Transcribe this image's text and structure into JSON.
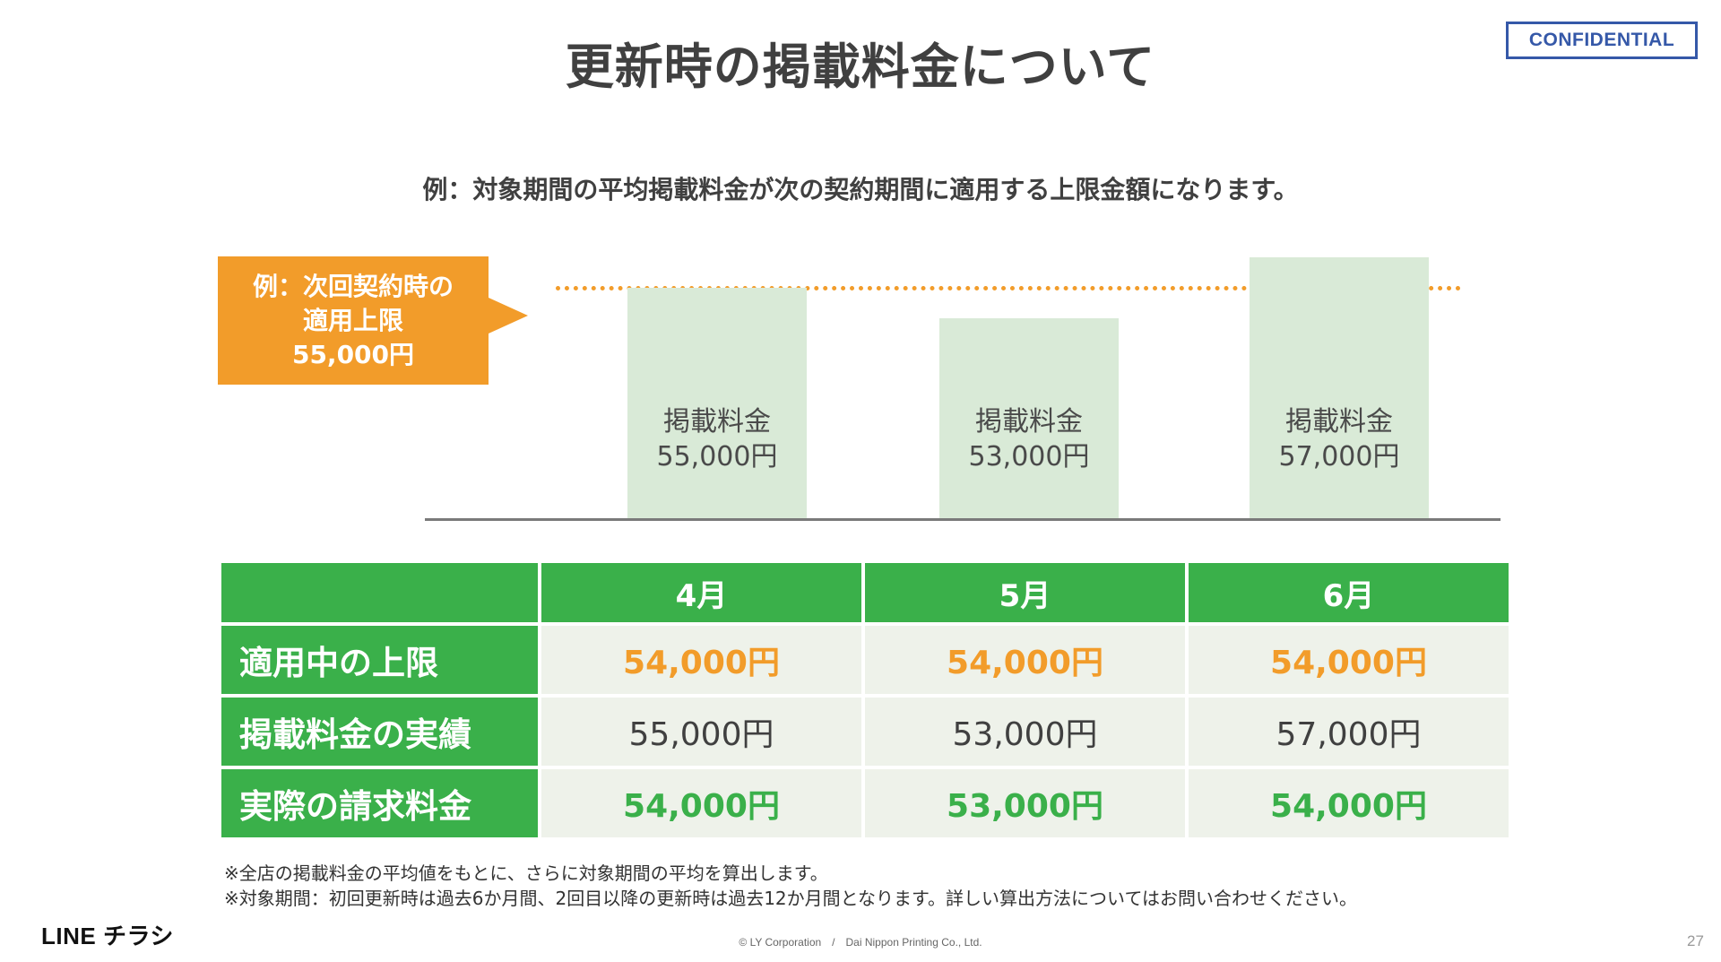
{
  "header": {
    "title": "更新時の掲載料金について",
    "badge": "CONFIDENTIAL"
  },
  "subtitle": "例：対象期間の平均掲載料金が次の契約期間に適用する上限金額になります。",
  "callout": {
    "line1": "例：次回契約時の",
    "line2": "適用上限",
    "line3": "55,000円",
    "color": "#f29c2a"
  },
  "chart_data": {
    "type": "bar",
    "values": [
      55000,
      53000,
      57000
    ],
    "bar_labels": [
      {
        "line1": "掲載料金",
        "line2": "55,000円"
      },
      {
        "line1": "掲載料金",
        "line2": "53,000円"
      },
      {
        "line1": "掲載料金",
        "line2": "57,000円"
      }
    ],
    "reference_line": 55000,
    "ylim": [
      0,
      57000
    ],
    "bar_color": "#d9ead7",
    "reference_color": "#f29c2a"
  },
  "table": {
    "columns": [
      "",
      "4月",
      "5月",
      "6月"
    ],
    "rows": [
      {
        "label": "適用中の上限",
        "cells": [
          "54,000円",
          "54,000円",
          "54,000円"
        ],
        "style": "orange"
      },
      {
        "label": "掲載料金の実績",
        "cells": [
          "55,000円",
          "53,000円",
          "57,000円"
        ],
        "style": "plain"
      },
      {
        "label": "実際の請求料金",
        "cells": [
          "54,000円",
          "53,000円",
          "54,000円"
        ],
        "style": "green"
      }
    ],
    "header_color": "#3ab04a",
    "cell_color": "#eef2ea"
  },
  "notes": [
    "※全店の掲載料金の平均値をもとに、さらに対象期間の平均を算出します。",
    "※対象期間：初回更新時は過去6か月間、2回目以降の更新時は過去12か月間となります。詳しい算出方法についてはお問い合わせください。"
  ],
  "footer": {
    "logo": "LINE チラシ",
    "copyright": "© LY Corporation　/　Dai Nippon Printing Co., Ltd.",
    "page": "27"
  }
}
